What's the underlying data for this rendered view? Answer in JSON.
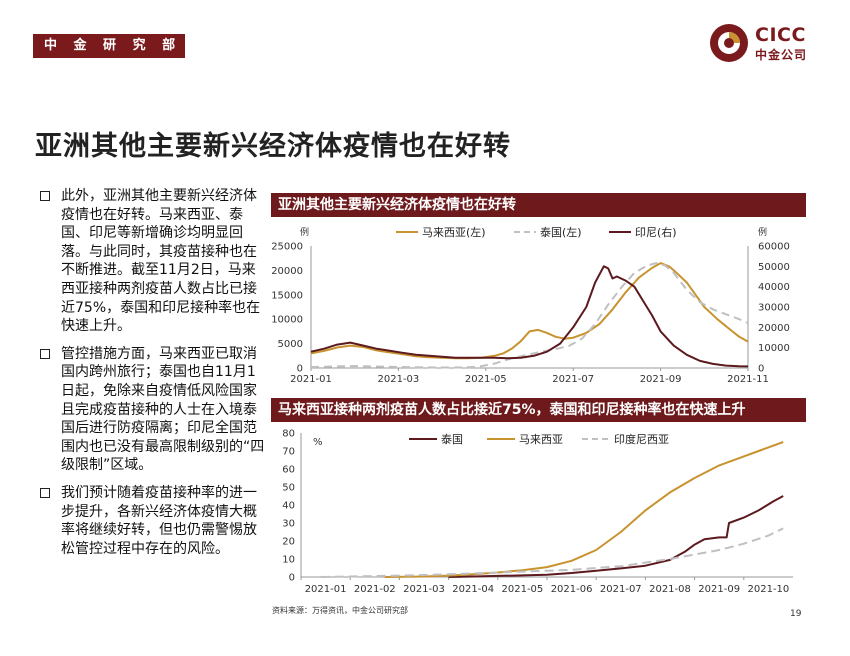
{
  "header": {
    "brand_tag": "中 金 研 究 部",
    "logo_en": "CICC",
    "logo_cn": "中金公司"
  },
  "title": "亚洲其他主要新兴经济体疫情也在好转",
  "bullets": [
    "此外，亚洲其他主要新兴经济体疫情也在好转。马来西亚、泰国、印尼等新增确诊均明显回落。与此同时，其疫苗接种也在不断推进。截至11月2日，马来西亚接种两剂疫苗人数占比已接近75%，泰国和印尼接种率也在快速上升。",
    "管控措施方面，马来西亚已取消国内跨州旅行；泰国也自11月1日起，免除来自疫情低风险国家且完成疫苗接种的人士在入境泰国后进行防疫隔离；印尼全国范围内也已没有最高限制级别的“四级限制”区域。",
    "我们预计随着疫苗接种率的进一步提升，各新兴经济体疫情大概率将继续好转，但也仍需警惕放松管控过程中存在的风险。"
  ],
  "chart_data": [
    {
      "type": "line",
      "title": "亚洲其他主要新兴经济体疫情也在好转",
      "left_unit": "例",
      "right_unit": "例",
      "left_ylim": [
        0,
        25000
      ],
      "right_ylim": [
        0,
        60000
      ],
      "left_ticks": [
        "25000",
        "20000",
        "15000",
        "10000",
        "5000",
        "0"
      ],
      "right_ticks": [
        "60000",
        "50000",
        "40000",
        "30000",
        "20000",
        "10000",
        "0"
      ],
      "x_ticks": [
        "2021-01",
        "2021-03",
        "2021-05",
        "2021-07",
        "2021-09",
        "2021-11"
      ],
      "x_range_months": [
        0,
        10
      ],
      "legend_position": "top",
      "colors": {
        "malaysia": "#c8932e",
        "thailand": "#c0c0c0",
        "indonesia": "#5c1a1e"
      },
      "series": [
        {
          "name": "马来西亚(左)",
          "axis": "left",
          "style": "solid",
          "x": [
            0.0,
            0.3,
            0.6,
            0.9,
            1.2,
            1.5,
            1.8,
            2.1,
            2.4,
            2.7,
            3.0,
            3.3,
            3.6,
            3.9,
            4.2,
            4.4,
            4.6,
            4.8,
            5.0,
            5.2,
            5.4,
            5.6,
            5.8,
            6.0,
            6.3,
            6.6,
            6.9,
            7.2,
            7.5,
            7.8,
            8.0,
            8.2,
            8.4,
            8.6,
            8.8,
            9.0,
            9.3,
            9.6,
            9.8,
            10.0
          ],
          "values": [
            3000,
            3500,
            4200,
            4600,
            4300,
            3600,
            3200,
            2800,
            2400,
            2200,
            2100,
            2000,
            2000,
            2100,
            2500,
            3000,
            4000,
            5500,
            7500,
            7800,
            7200,
            6400,
            6000,
            6200,
            7200,
            9000,
            12000,
            15500,
            18500,
            20500,
            21500,
            20800,
            19200,
            17500,
            15000,
            12500,
            10000,
            7800,
            6400,
            5400
          ]
        },
        {
          "name": "泰国(左)",
          "axis": "left",
          "style": "dashed",
          "x": [
            0.0,
            0.5,
            1.0,
            1.5,
            2.0,
            2.5,
            3.0,
            3.4,
            3.8,
            4.2,
            4.6,
            5.0,
            5.3,
            5.6,
            5.9,
            6.2,
            6.5,
            6.8,
            7.1,
            7.4,
            7.7,
            7.9,
            8.1,
            8.3,
            8.6,
            8.9,
            9.2,
            9.5,
            9.8,
            10.0
          ],
          "values": [
            200,
            300,
            400,
            300,
            200,
            150,
            100,
            100,
            200,
            900,
            2000,
            2800,
            3400,
            3900,
            4500,
            6000,
            9000,
            13000,
            16500,
            19500,
            21000,
            21500,
            21000,
            19500,
            16000,
            13500,
            12000,
            11000,
            10000,
            9200
          ]
        },
        {
          "name": "印尼(右)",
          "axis": "right",
          "style": "solid",
          "x": [
            0.0,
            0.3,
            0.6,
            0.9,
            1.2,
            1.5,
            1.8,
            2.1,
            2.4,
            2.7,
            3.0,
            3.3,
            3.6,
            3.9,
            4.2,
            4.5,
            4.8,
            5.1,
            5.4,
            5.7,
            6.0,
            6.3,
            6.5,
            6.7,
            6.8,
            6.9,
            7.0,
            7.2,
            7.4,
            7.6,
            7.8,
            8.0,
            8.3,
            8.6,
            8.9,
            9.2,
            9.5,
            9.8,
            10.0
          ],
          "values": [
            8000,
            9500,
            11500,
            12500,
            11000,
            9500,
            8500,
            7500,
            6500,
            6000,
            5500,
            5000,
            5000,
            5000,
            5000,
            4800,
            5000,
            6000,
            8000,
            12000,
            20000,
            30000,
            42000,
            50000,
            49000,
            44000,
            45000,
            43000,
            40000,
            33000,
            26000,
            18000,
            11000,
            6500,
            3500,
            2000,
            1200,
            900,
            800
          ]
        }
      ]
    },
    {
      "type": "line",
      "title": "马来西亚接种两剂疫苗人数占比接近75%，泰国和印尼接种率也在快速上升",
      "ylabel": "%",
      "ylim": [
        0,
        80
      ],
      "y_ticks": [
        "80",
        "70",
        "60",
        "50",
        "40",
        "30",
        "20",
        "10",
        "0"
      ],
      "x_ticks": [
        "2021-01",
        "2021-02",
        "2021-03",
        "2021-04",
        "2021-05",
        "2021-06",
        "2021-07",
        "2021-08",
        "2021-09",
        "2021-10"
      ],
      "x_range_months": [
        0,
        10
      ],
      "legend_position": "top",
      "colors": {
        "thailand": "#5c1a1e",
        "malaysia": "#c8932e",
        "indonesia": "#c0c0c0"
      },
      "series": [
        {
          "name": "泰国",
          "style": "solid",
          "x": [
            3.0,
            3.5,
            4.0,
            4.5,
            5.0,
            5.5,
            6.0,
            6.5,
            7.0,
            7.5,
            7.8,
            8.0,
            8.2,
            8.5,
            8.65,
            8.7,
            9.0,
            9.3,
            9.6,
            9.8
          ],
          "values": [
            0,
            0.3,
            0.6,
            0.9,
            1.3,
            2.2,
            3.5,
            4.8,
            6.3,
            9.5,
            14,
            18,
            21,
            22,
            22,
            30,
            33,
            37,
            42,
            45
          ]
        },
        {
          "name": "马来西亚",
          "style": "solid",
          "x": [
            1.7,
            2.5,
            3.0,
            3.5,
            4.0,
            4.5,
            5.0,
            5.5,
            6.0,
            6.5,
            7.0,
            7.5,
            8.0,
            8.5,
            9.0,
            9.5,
            9.8
          ],
          "values": [
            0,
            0.3,
            0.8,
            1.5,
            2.5,
            3.8,
            5.5,
            9,
            15,
            25,
            37,
            47,
            55,
            62,
            67,
            72,
            75
          ]
        },
        {
          "name": "印度尼西亚",
          "style": "dashed",
          "x": [
            0.4,
            1.0,
            2.0,
            3.0,
            3.5,
            4.0,
            4.5,
            5.0,
            5.5,
            6.0,
            6.5,
            7.0,
            7.5,
            8.0,
            8.5,
            9.0,
            9.5,
            9.8
          ],
          "values": [
            0,
            0.3,
            0.8,
            1.5,
            2,
            2.5,
            3,
            3.5,
            4,
            5,
            6,
            8,
            10,
            12.5,
            15,
            18.5,
            23,
            27
          ]
        }
      ]
    }
  ],
  "source": "资料来源：万得资讯，中金公司研究部",
  "page_number": "19",
  "colors": {
    "brand": "#7a1a1d",
    "panel": "#6e1a1c"
  }
}
